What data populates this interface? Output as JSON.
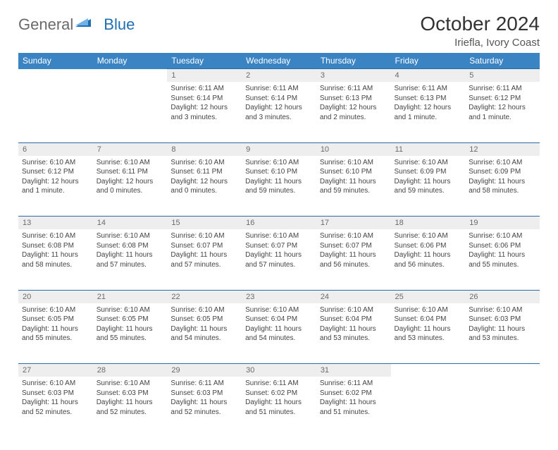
{
  "logo": {
    "general": "General",
    "blue": "Blue"
  },
  "title": "October 2024",
  "subtitle": "Iriefla, Ivory Coast",
  "colors": {
    "header_bg": "#3b84c4",
    "header_text": "#ffffff",
    "daynum_bg": "#eeeeee",
    "rule": "#2e6ca8",
    "logo_gray": "#6a6a6a",
    "logo_blue": "#1f6fb2"
  },
  "weekdays": [
    "Sunday",
    "Monday",
    "Tuesday",
    "Wednesday",
    "Thursday",
    "Friday",
    "Saturday"
  ],
  "weeks": [
    {
      "nums": [
        "",
        "",
        "1",
        "2",
        "3",
        "4",
        "5"
      ],
      "cells": [
        null,
        null,
        {
          "sunrise": "Sunrise: 6:11 AM",
          "sunset": "Sunset: 6:14 PM",
          "daylight": "Daylight: 12 hours and 3 minutes."
        },
        {
          "sunrise": "Sunrise: 6:11 AM",
          "sunset": "Sunset: 6:14 PM",
          "daylight": "Daylight: 12 hours and 3 minutes."
        },
        {
          "sunrise": "Sunrise: 6:11 AM",
          "sunset": "Sunset: 6:13 PM",
          "daylight": "Daylight: 12 hours and 2 minutes."
        },
        {
          "sunrise": "Sunrise: 6:11 AM",
          "sunset": "Sunset: 6:13 PM",
          "daylight": "Daylight: 12 hours and 1 minute."
        },
        {
          "sunrise": "Sunrise: 6:11 AM",
          "sunset": "Sunset: 6:12 PM",
          "daylight": "Daylight: 12 hours and 1 minute."
        }
      ]
    },
    {
      "nums": [
        "6",
        "7",
        "8",
        "9",
        "10",
        "11",
        "12"
      ],
      "cells": [
        {
          "sunrise": "Sunrise: 6:10 AM",
          "sunset": "Sunset: 6:12 PM",
          "daylight": "Daylight: 12 hours and 1 minute."
        },
        {
          "sunrise": "Sunrise: 6:10 AM",
          "sunset": "Sunset: 6:11 PM",
          "daylight": "Daylight: 12 hours and 0 minutes."
        },
        {
          "sunrise": "Sunrise: 6:10 AM",
          "sunset": "Sunset: 6:11 PM",
          "daylight": "Daylight: 12 hours and 0 minutes."
        },
        {
          "sunrise": "Sunrise: 6:10 AM",
          "sunset": "Sunset: 6:10 PM",
          "daylight": "Daylight: 11 hours and 59 minutes."
        },
        {
          "sunrise": "Sunrise: 6:10 AM",
          "sunset": "Sunset: 6:10 PM",
          "daylight": "Daylight: 11 hours and 59 minutes."
        },
        {
          "sunrise": "Sunrise: 6:10 AM",
          "sunset": "Sunset: 6:09 PM",
          "daylight": "Daylight: 11 hours and 59 minutes."
        },
        {
          "sunrise": "Sunrise: 6:10 AM",
          "sunset": "Sunset: 6:09 PM",
          "daylight": "Daylight: 11 hours and 58 minutes."
        }
      ]
    },
    {
      "nums": [
        "13",
        "14",
        "15",
        "16",
        "17",
        "18",
        "19"
      ],
      "cells": [
        {
          "sunrise": "Sunrise: 6:10 AM",
          "sunset": "Sunset: 6:08 PM",
          "daylight": "Daylight: 11 hours and 58 minutes."
        },
        {
          "sunrise": "Sunrise: 6:10 AM",
          "sunset": "Sunset: 6:08 PM",
          "daylight": "Daylight: 11 hours and 57 minutes."
        },
        {
          "sunrise": "Sunrise: 6:10 AM",
          "sunset": "Sunset: 6:07 PM",
          "daylight": "Daylight: 11 hours and 57 minutes."
        },
        {
          "sunrise": "Sunrise: 6:10 AM",
          "sunset": "Sunset: 6:07 PM",
          "daylight": "Daylight: 11 hours and 57 minutes."
        },
        {
          "sunrise": "Sunrise: 6:10 AM",
          "sunset": "Sunset: 6:07 PM",
          "daylight": "Daylight: 11 hours and 56 minutes."
        },
        {
          "sunrise": "Sunrise: 6:10 AM",
          "sunset": "Sunset: 6:06 PM",
          "daylight": "Daylight: 11 hours and 56 minutes."
        },
        {
          "sunrise": "Sunrise: 6:10 AM",
          "sunset": "Sunset: 6:06 PM",
          "daylight": "Daylight: 11 hours and 55 minutes."
        }
      ]
    },
    {
      "nums": [
        "20",
        "21",
        "22",
        "23",
        "24",
        "25",
        "26"
      ],
      "cells": [
        {
          "sunrise": "Sunrise: 6:10 AM",
          "sunset": "Sunset: 6:05 PM",
          "daylight": "Daylight: 11 hours and 55 minutes."
        },
        {
          "sunrise": "Sunrise: 6:10 AM",
          "sunset": "Sunset: 6:05 PM",
          "daylight": "Daylight: 11 hours and 55 minutes."
        },
        {
          "sunrise": "Sunrise: 6:10 AM",
          "sunset": "Sunset: 6:05 PM",
          "daylight": "Daylight: 11 hours and 54 minutes."
        },
        {
          "sunrise": "Sunrise: 6:10 AM",
          "sunset": "Sunset: 6:04 PM",
          "daylight": "Daylight: 11 hours and 54 minutes."
        },
        {
          "sunrise": "Sunrise: 6:10 AM",
          "sunset": "Sunset: 6:04 PM",
          "daylight": "Daylight: 11 hours and 53 minutes."
        },
        {
          "sunrise": "Sunrise: 6:10 AM",
          "sunset": "Sunset: 6:04 PM",
          "daylight": "Daylight: 11 hours and 53 minutes."
        },
        {
          "sunrise": "Sunrise: 6:10 AM",
          "sunset": "Sunset: 6:03 PM",
          "daylight": "Daylight: 11 hours and 53 minutes."
        }
      ]
    },
    {
      "nums": [
        "27",
        "28",
        "29",
        "30",
        "31",
        "",
        ""
      ],
      "cells": [
        {
          "sunrise": "Sunrise: 6:10 AM",
          "sunset": "Sunset: 6:03 PM",
          "daylight": "Daylight: 11 hours and 52 minutes."
        },
        {
          "sunrise": "Sunrise: 6:10 AM",
          "sunset": "Sunset: 6:03 PM",
          "daylight": "Daylight: 11 hours and 52 minutes."
        },
        {
          "sunrise": "Sunrise: 6:11 AM",
          "sunset": "Sunset: 6:03 PM",
          "daylight": "Daylight: 11 hours and 52 minutes."
        },
        {
          "sunrise": "Sunrise: 6:11 AM",
          "sunset": "Sunset: 6:02 PM",
          "daylight": "Daylight: 11 hours and 51 minutes."
        },
        {
          "sunrise": "Sunrise: 6:11 AM",
          "sunset": "Sunset: 6:02 PM",
          "daylight": "Daylight: 11 hours and 51 minutes."
        },
        null,
        null
      ]
    }
  ]
}
